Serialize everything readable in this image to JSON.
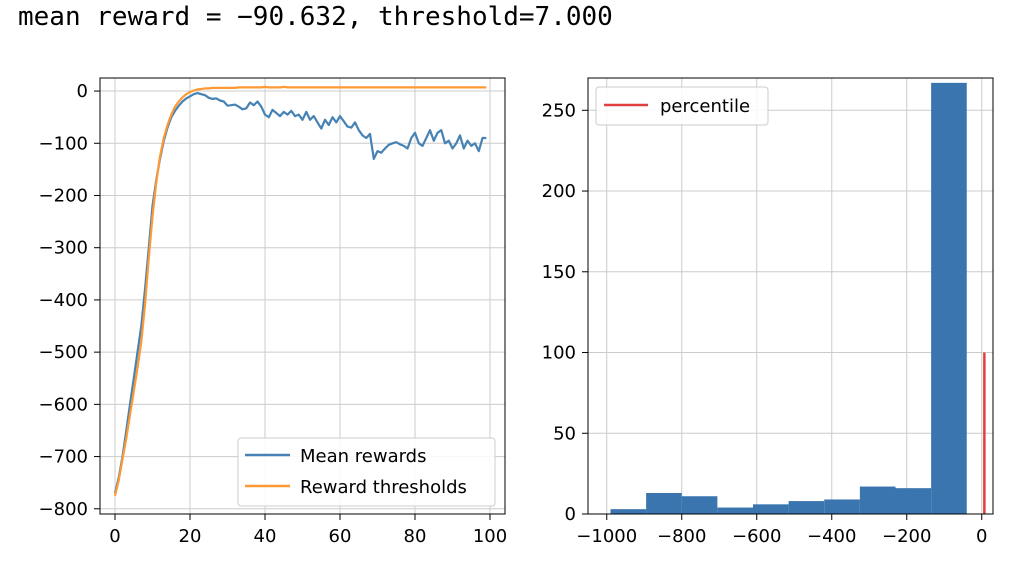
{
  "header": {
    "text": "mean reward = −90.632, threshold=7.000"
  },
  "colors": {
    "mean": "#4682b4",
    "threshold": "#ff9933",
    "bar": "#3a75b0",
    "percentile": "#e04040",
    "grid": "#cccccc"
  },
  "chart_data": [
    {
      "type": "line",
      "xlim": [
        -4,
        104
      ],
      "ylim": [
        -810,
        25
      ],
      "x_ticks": [
        0,
        20,
        40,
        60,
        80,
        100
      ],
      "x_tick_labels": [
        "0",
        "20",
        "40",
        "60",
        "80",
        "100"
      ],
      "y_ticks": [
        0,
        -100,
        -200,
        -300,
        -400,
        -500,
        -600,
        -700,
        -800
      ],
      "y_tick_labels": [
        "0",
        "−100",
        "−200",
        "−300",
        "−400",
        "−500",
        "−600",
        "−700",
        "−800"
      ],
      "grid": true,
      "legend_position": "lower-right",
      "series": [
        {
          "name": "Mean rewards",
          "color": "#4682b4",
          "x": [
            0,
            1,
            2,
            3,
            4,
            5,
            6,
            7,
            8,
            9,
            10,
            11,
            12,
            13,
            14,
            15,
            16,
            17,
            18,
            19,
            20,
            21,
            22,
            23,
            24,
            25,
            26,
            27,
            28,
            29,
            30,
            31,
            32,
            33,
            34,
            35,
            36,
            37,
            38,
            39,
            40,
            41,
            42,
            43,
            44,
            45,
            46,
            47,
            48,
            49,
            50,
            51,
            52,
            53,
            54,
            55,
            56,
            57,
            58,
            59,
            60,
            61,
            62,
            63,
            64,
            65,
            66,
            67,
            68,
            69,
            70,
            71,
            72,
            73,
            74,
            75,
            76,
            77,
            78,
            79,
            80,
            81,
            82,
            83,
            84,
            85,
            86,
            87,
            88,
            89,
            90,
            91,
            92,
            93,
            94,
            95,
            96,
            97,
            98,
            99
          ],
          "values": [
            -770,
            -740,
            -700,
            -650,
            -600,
            -550,
            -500,
            -450,
            -380,
            -300,
            -220,
            -170,
            -130,
            -95,
            -70,
            -50,
            -38,
            -28,
            -20,
            -14,
            -10,
            -6,
            -4,
            -6,
            -8,
            -13,
            -15,
            -14,
            -18,
            -20,
            -28,
            -27,
            -26,
            -30,
            -35,
            -33,
            -22,
            -27,
            -20,
            -30,
            -45,
            -50,
            -36,
            -42,
            -48,
            -40,
            -45,
            -38,
            -48,
            -45,
            -55,
            -40,
            -55,
            -48,
            -60,
            -72,
            -55,
            -65,
            -50,
            -60,
            -48,
            -58,
            -68,
            -70,
            -60,
            -75,
            -85,
            -90,
            -82,
            -130,
            -115,
            -118,
            -110,
            -103,
            -100,
            -98,
            -102,
            -105,
            -110,
            -90,
            -80,
            -100,
            -105,
            -90,
            -75,
            -95,
            -80,
            -75,
            -100,
            -95,
            -110,
            -100,
            -85,
            -110,
            -95,
            -105,
            -100,
            -115,
            -90,
            -90
          ]
        },
        {
          "name": "Reward thresholds",
          "color": "#ff9933",
          "x": [
            0,
            1,
            2,
            3,
            4,
            5,
            6,
            7,
            8,
            9,
            10,
            11,
            12,
            13,
            14,
            15,
            16,
            17,
            18,
            19,
            20,
            21,
            22,
            23,
            24,
            25,
            26,
            27,
            28,
            29,
            30,
            31,
            32,
            33,
            34,
            35,
            36,
            37,
            38,
            39,
            40,
            41,
            42,
            43,
            44,
            45,
            46,
            47,
            48,
            49,
            50,
            51,
            52,
            53,
            54,
            55,
            56,
            57,
            58,
            59,
            60,
            61,
            62,
            63,
            64,
            65,
            66,
            67,
            68,
            69,
            70,
            71,
            72,
            73,
            74,
            75,
            76,
            77,
            78,
            79,
            80,
            81,
            82,
            83,
            84,
            85,
            86,
            87,
            88,
            89,
            90,
            91,
            92,
            93,
            94,
            95,
            96,
            97,
            98,
            99
          ],
          "values": [
            -775,
            -745,
            -705,
            -665,
            -620,
            -575,
            -530,
            -480,
            -410,
            -320,
            -240,
            -175,
            -125,
            -90,
            -65,
            -45,
            -30,
            -20,
            -12,
            -6,
            -2,
            1,
            3,
            4,
            5,
            5,
            6,
            6,
            6,
            6,
            6,
            6,
            6,
            7,
            7,
            7,
            7,
            7,
            7,
            7,
            8,
            7,
            7,
            7,
            7,
            8,
            7,
            7,
            7,
            7,
            7,
            7,
            7,
            7,
            7,
            7,
            7,
            7,
            7,
            7,
            7,
            7,
            7,
            7,
            7,
            7,
            7,
            7,
            7,
            7,
            7,
            7,
            7,
            7,
            7,
            7,
            7,
            7,
            7,
            7,
            7,
            7,
            7,
            7,
            7,
            7,
            7,
            7,
            7,
            7,
            7,
            7,
            7,
            7,
            7,
            7,
            7,
            7,
            7,
            7
          ]
        }
      ]
    },
    {
      "type": "bar",
      "xlim": [
        -1050,
        30
      ],
      "ylim": [
        0,
        270
      ],
      "bin_edges": [
        -990,
        -895,
        -800,
        -705,
        -610,
        -515,
        -420,
        -325,
        -230,
        -135,
        -40
      ],
      "values": [
        3,
        13,
        11,
        4,
        6,
        8,
        9,
        17,
        16,
        267
      ],
      "x_ticks": [
        -1000,
        -800,
        -600,
        -400,
        -200,
        0
      ],
      "x_tick_labels": [
        "−1000",
        "−800",
        "−600",
        "−400",
        "−200",
        "0"
      ],
      "y_ticks": [
        0,
        50,
        100,
        150,
        200,
        250
      ],
      "y_tick_labels": [
        "0",
        "50",
        "100",
        "150",
        "200",
        "250"
      ],
      "grid": true,
      "legend_position": "top-left",
      "percentile": {
        "name": "percentile",
        "value": 7,
        "ymax": 100,
        "color": "#e04040"
      }
    }
  ]
}
